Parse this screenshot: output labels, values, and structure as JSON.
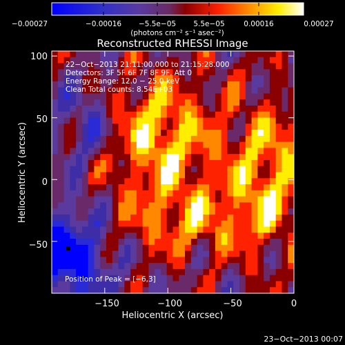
{
  "chart_data": {
    "type": "heatmap",
    "title": "Reconstructed RHESSI Image",
    "xlabel": "Heliocentric X (arcsec)",
    "ylabel": "Heliocentric Y (arcsec)",
    "xlim": [
      -192,
      0
    ],
    "ylim": [
      -92,
      104
    ],
    "x_ticks": [
      -150,
      -100,
      -50,
      0
    ],
    "x_tick_labels": [
      "−150",
      "−100",
      "−50",
      "0"
    ],
    "y_ticks": [
      100,
      50,
      0,
      -50
    ],
    "y_tick_labels": [
      "100",
      "50",
      "0",
      "−50"
    ],
    "colorbar": {
      "min": -0.00027,
      "max": 0.00027,
      "tick_labels": [
        "−0.00027",
        "−0.00016",
        "−5.5e−05",
        "5.5e−05",
        "0.00016",
        "0.00027"
      ],
      "unit_text": "(photons cm⁻² s⁻¹ asec⁻²)",
      "colors": [
        "#0000ff",
        "#2a2ad6",
        "#3d2ea8",
        "#5b3a9e",
        "#6a2a6a",
        "#8a0000",
        "#ff2200",
        "#ff8800",
        "#ffee00",
        "#ffffff"
      ]
    },
    "annotations": [
      "22−Oct−2013 21:11:00.000 to 21:15:28.000",
      "Detectors: 3F 5F 6F 7F 8F 9F, Att 0",
      "Energy Range: 12.0 − 25.0 keV",
      "Clean    Total counts: 8.54E+03"
    ],
    "peak_label": "Position of Peak = [−6,3]",
    "footer_date": "23−Oct−2013 00:07",
    "grid": false
  }
}
